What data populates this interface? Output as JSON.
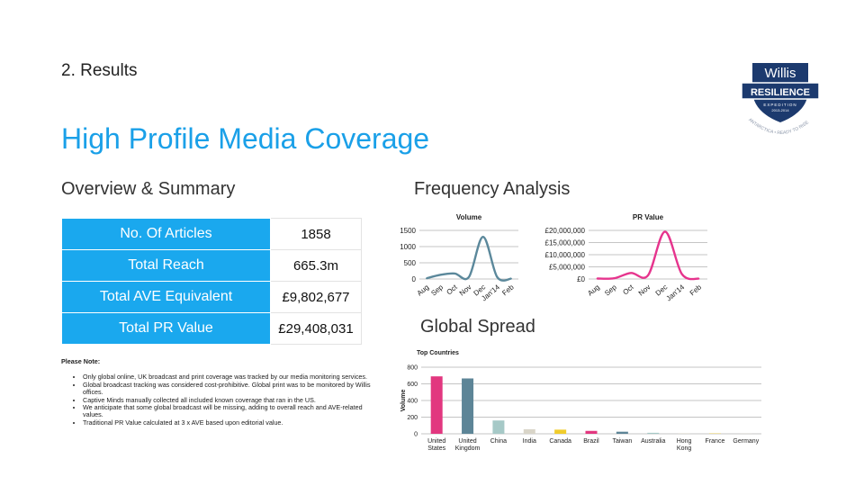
{
  "header": {
    "section": "2. Results",
    "title": "High Profile Media Coverage"
  },
  "overview": {
    "heading": "Overview & Summary",
    "rows": [
      {
        "label": "No. Of Articles",
        "value": "1858"
      },
      {
        "label": "Total Reach",
        "value": "665.3m"
      },
      {
        "label": "Total AVE Equivalent",
        "value": "£9,802,677"
      },
      {
        "label": "Total PR Value",
        "value": "£29,408,031"
      }
    ]
  },
  "note": {
    "title": "Please Note:",
    "items": [
      "Only global online, UK broadcast and print coverage was tracked by our media monitoring services.",
      "Global broadcast tracking was considered cost-prohibitive. Global print was to be monitored by Willis offices.",
      "Captive Minds manually collected all included known coverage that ran in the US.",
      "We anticipate that some global broadcast will be missing, adding to overall reach and AVE-related values.",
      "Traditional PR Value calculated at 3 x AVE based upon editorial value."
    ]
  },
  "frequency": {
    "heading": "Frequency Analysis"
  },
  "global": {
    "heading": "Global Spread"
  },
  "logo": {
    "brand": "Willis",
    "word": "RESILIENCE",
    "sub": "EXPEDITION",
    "years": "2013-2014",
    "ring": "ANTARCTICA • READY TO RISE"
  },
  "chart_data": [
    {
      "type": "line",
      "title": "Volume",
      "categories": [
        "Aug",
        "Sep",
        "Oct",
        "Nov",
        "Dec",
        "Jan'14",
        "Feb"
      ],
      "series": [
        {
          "values": [
            20,
            130,
            170,
            60,
            1300,
            60,
            10
          ]
        }
      ],
      "ylim": [
        0,
        1500
      ],
      "yticks": [
        0,
        500,
        1000,
        1500
      ],
      "ytick_labels": [
        "0",
        "500",
        "1000",
        "1500"
      ],
      "color": "#5b889b",
      "grid": true
    },
    {
      "type": "line",
      "title": "PR Value",
      "categories": [
        "Aug",
        "Sep",
        "Oct",
        "Nov",
        "Dec",
        "Jan'14",
        "Feb"
      ],
      "series": [
        {
          "values": [
            200000,
            300000,
            2500000,
            1500000,
            19500000,
            2000000,
            100000
          ]
        }
      ],
      "ylim": [
        0,
        20000000
      ],
      "yticks": [
        0,
        5000000,
        10000000,
        15000000,
        20000000
      ],
      "ytick_labels": [
        "£0",
        "£5,000,000",
        "£10,000,000",
        "£15,000,000",
        "£20,000,000"
      ],
      "color": "#e6348d",
      "grid": true
    },
    {
      "type": "bar",
      "title": "Top Countries",
      "ylabel": "Volume",
      "categories": [
        "United States",
        "United Kingdom",
        "China",
        "India",
        "Canada",
        "Brazil",
        "Taiwan",
        "Australia",
        "Hong Kong",
        "France",
        "Germany"
      ],
      "values": [
        690,
        665,
        160,
        55,
        50,
        35,
        25,
        12,
        6,
        4,
        3
      ],
      "colors": [
        "#e2377f",
        "#5d8597",
        "#a6c9c7",
        "#d9d5c9",
        "#f0cc2c",
        "#e2377f",
        "#5d8597",
        "#a6c9c7",
        "#d9d5c9",
        "#f0cc2c",
        "#d9d5c9"
      ],
      "ylim": [
        0,
        800
      ],
      "yticks": [
        0,
        200,
        400,
        600,
        800
      ],
      "grid": true
    }
  ]
}
